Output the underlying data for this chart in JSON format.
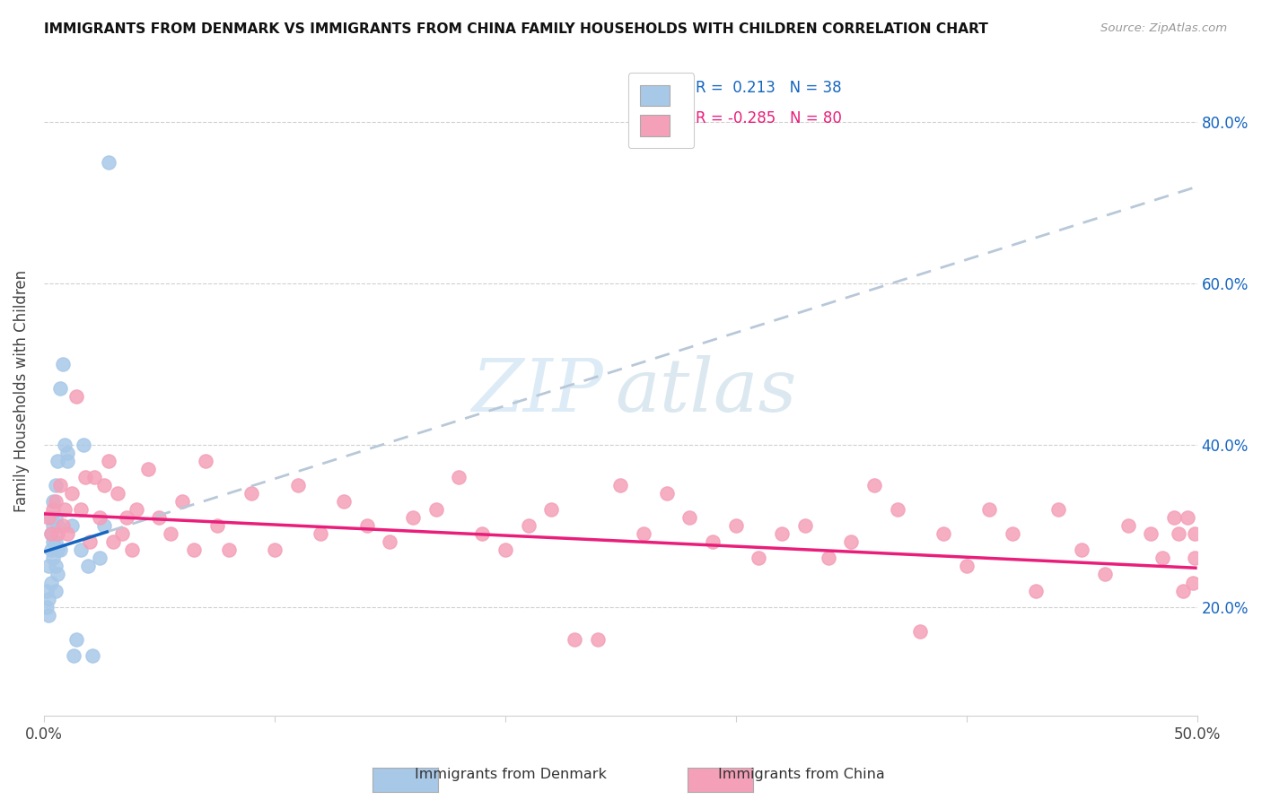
{
  "title": "IMMIGRANTS FROM DENMARK VS IMMIGRANTS FROM CHINA FAMILY HOUSEHOLDS WITH CHILDREN CORRELATION CHART",
  "source": "Source: ZipAtlas.com",
  "ylabel": "Family Households with Children",
  "xlim": [
    0.0,
    0.5
  ],
  "ylim": [
    0.065,
    0.87
  ],
  "x_ticks": [
    0.0,
    0.1,
    0.2,
    0.3,
    0.4,
    0.5
  ],
  "x_tick_labels": [
    "0.0%",
    "",
    "",
    "",
    "",
    "50.0%"
  ],
  "y_ticks": [
    0.2,
    0.4,
    0.6,
    0.8
  ],
  "y_tick_labels": [
    "20.0%",
    "40.0%",
    "60.0%",
    "80.0%"
  ],
  "color_denmark": "#a8c8e8",
  "color_china": "#f4a0b8",
  "line_color_denmark": "#1565c0",
  "line_color_china": "#e91e7a",
  "watermark_zip": "ZIP",
  "watermark_atlas": "atlas",
  "denmark_x": [
    0.001,
    0.001,
    0.002,
    0.002,
    0.002,
    0.003,
    0.003,
    0.003,
    0.003,
    0.004,
    0.004,
    0.004,
    0.004,
    0.005,
    0.005,
    0.005,
    0.005,
    0.005,
    0.006,
    0.006,
    0.006,
    0.006,
    0.007,
    0.007,
    0.008,
    0.009,
    0.01,
    0.01,
    0.012,
    0.013,
    0.014,
    0.016,
    0.017,
    0.019,
    0.021,
    0.024,
    0.026,
    0.028
  ],
  "denmark_y": [
    0.2,
    0.22,
    0.19,
    0.21,
    0.25,
    0.23,
    0.27,
    0.29,
    0.31,
    0.26,
    0.28,
    0.3,
    0.33,
    0.22,
    0.25,
    0.28,
    0.31,
    0.35,
    0.24,
    0.27,
    0.3,
    0.38,
    0.27,
    0.47,
    0.5,
    0.4,
    0.39,
    0.38,
    0.3,
    0.14,
    0.16,
    0.27,
    0.4,
    0.25,
    0.14,
    0.26,
    0.3,
    0.75
  ],
  "denmark_line_x0": 0.0,
  "denmark_line_y0": 0.268,
  "denmark_line_x1": 0.5,
  "denmark_line_y1": 0.72,
  "china_x": [
    0.002,
    0.003,
    0.004,
    0.005,
    0.006,
    0.007,
    0.008,
    0.009,
    0.01,
    0.012,
    0.014,
    0.016,
    0.018,
    0.02,
    0.022,
    0.024,
    0.026,
    0.028,
    0.03,
    0.032,
    0.034,
    0.036,
    0.038,
    0.04,
    0.045,
    0.05,
    0.055,
    0.06,
    0.065,
    0.07,
    0.075,
    0.08,
    0.09,
    0.1,
    0.11,
    0.12,
    0.13,
    0.14,
    0.15,
    0.16,
    0.17,
    0.18,
    0.19,
    0.2,
    0.21,
    0.22,
    0.23,
    0.24,
    0.25,
    0.26,
    0.27,
    0.28,
    0.29,
    0.3,
    0.31,
    0.32,
    0.33,
    0.34,
    0.35,
    0.36,
    0.37,
    0.38,
    0.39,
    0.4,
    0.41,
    0.42,
    0.43,
    0.44,
    0.45,
    0.46,
    0.47,
    0.48,
    0.485,
    0.49,
    0.492,
    0.494,
    0.496,
    0.498,
    0.499,
    0.499
  ],
  "china_y": [
    0.31,
    0.29,
    0.32,
    0.33,
    0.29,
    0.35,
    0.3,
    0.32,
    0.29,
    0.34,
    0.46,
    0.32,
    0.36,
    0.28,
    0.36,
    0.31,
    0.35,
    0.38,
    0.28,
    0.34,
    0.29,
    0.31,
    0.27,
    0.32,
    0.37,
    0.31,
    0.29,
    0.33,
    0.27,
    0.38,
    0.3,
    0.27,
    0.34,
    0.27,
    0.35,
    0.29,
    0.33,
    0.3,
    0.28,
    0.31,
    0.32,
    0.36,
    0.29,
    0.27,
    0.3,
    0.32,
    0.16,
    0.16,
    0.35,
    0.29,
    0.34,
    0.31,
    0.28,
    0.3,
    0.26,
    0.29,
    0.3,
    0.26,
    0.28,
    0.35,
    0.32,
    0.17,
    0.29,
    0.25,
    0.32,
    0.29,
    0.22,
    0.32,
    0.27,
    0.24,
    0.3,
    0.29,
    0.26,
    0.31,
    0.29,
    0.22,
    0.31,
    0.23,
    0.29,
    0.26
  ],
  "china_line_x0": 0.0,
  "china_line_y0": 0.315,
  "china_line_x1": 0.5,
  "china_line_y1": 0.248
}
